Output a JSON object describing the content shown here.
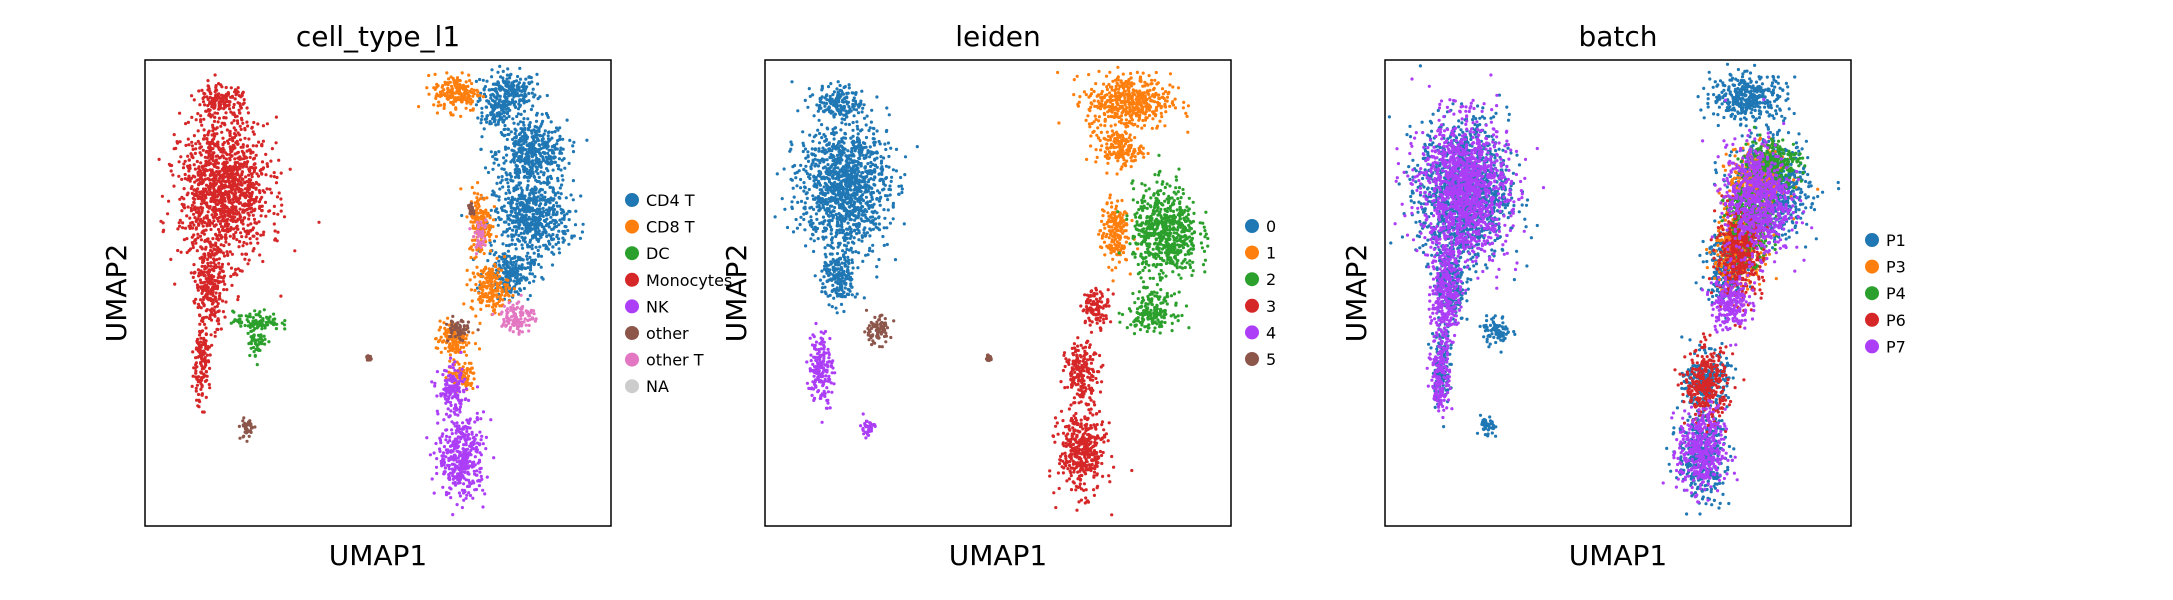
{
  "chart_data": [
    {
      "type": "scatter",
      "title": "cell_type_l1",
      "xlabel": "UMAP1",
      "ylabel": "UMAP2",
      "xlim": [
        0,
        10
      ],
      "ylim": [
        0,
        10
      ],
      "legend": "right",
      "series": [
        {
          "name": "CD4 T",
          "color": "#1f77b4",
          "blobs": [
            [
              7.8,
              9.3,
              0.6,
              0.45
            ],
            [
              8.3,
              8.0,
              0.75,
              0.7
            ],
            [
              8.3,
              6.6,
              0.8,
              0.8
            ],
            [
              7.8,
              5.4,
              0.5,
              0.5
            ],
            [
              7.5,
              8.8,
              0.3,
              0.3
            ]
          ]
        },
        {
          "name": "CD8 T",
          "color": "#ff7f0e",
          "blobs": [
            [
              6.7,
              9.3,
              0.5,
              0.4
            ],
            [
              7.2,
              6.5,
              0.25,
              0.7
            ],
            [
              7.4,
              5.1,
              0.4,
              0.5
            ],
            [
              6.6,
              4.0,
              0.35,
              0.4
            ],
            [
              6.8,
              3.2,
              0.3,
              0.3
            ]
          ]
        },
        {
          "name": "DC",
          "color": "#2ca02c",
          "blobs": [
            [
              2.4,
              4.4,
              0.5,
              0.2
            ],
            [
              2.4,
              4.0,
              0.2,
              0.35
            ]
          ]
        },
        {
          "name": "Monocytes",
          "color": "#d62728",
          "blobs": [
            [
              1.7,
              7.2,
              0.95,
              1.5
            ],
            [
              1.4,
              5.2,
              0.3,
              0.9
            ],
            [
              1.2,
              3.5,
              0.18,
              0.9
            ],
            [
              1.6,
              9.1,
              0.5,
              0.35
            ]
          ]
        },
        {
          "name": "NK",
          "color": "#ac3ef7",
          "blobs": [
            [
              6.8,
              1.5,
              0.5,
              0.9
            ],
            [
              6.6,
              2.9,
              0.3,
              0.5
            ]
          ]
        },
        {
          "name": "other",
          "color": "#8c564b",
          "blobs": [
            [
              2.2,
              2.1,
              0.15,
              0.25
            ],
            [
              6.7,
              4.2,
              0.25,
              0.25
            ],
            [
              7.0,
              6.8,
              0.05,
              0.1
            ],
            [
              4.8,
              3.6,
              0.05,
              0.05
            ]
          ]
        },
        {
          "name": "other T",
          "color": "#e377c2",
          "blobs": [
            [
              8.0,
              4.5,
              0.35,
              0.35
            ],
            [
              7.2,
              6.2,
              0.15,
              0.3
            ]
          ]
        },
        {
          "name": "NA",
          "color": "#cccccc",
          "blobs": []
        }
      ]
    },
    {
      "type": "scatter",
      "title": "leiden",
      "xlabel": "UMAP1",
      "ylabel": "UMAP2",
      "xlim": [
        0,
        10
      ],
      "ylim": [
        0,
        10
      ],
      "legend": "right",
      "series": [
        {
          "name": "0",
          "color": "#1f77b4",
          "blobs": [
            [
              1.7,
              7.3,
              0.95,
              1.4
            ],
            [
              1.6,
              9.1,
              0.5,
              0.35
            ],
            [
              1.6,
              5.3,
              0.35,
              0.6
            ]
          ]
        },
        {
          "name": "1",
          "color": "#ff7f0e",
          "blobs": [
            [
              7.8,
              9.1,
              0.9,
              0.6
            ],
            [
              7.6,
              8.1,
              0.5,
              0.35
            ],
            [
              7.5,
              6.3,
              0.3,
              0.7
            ]
          ]
        },
        {
          "name": "2",
          "color": "#2ca02c",
          "blobs": [
            [
              8.6,
              6.3,
              0.7,
              1.0
            ],
            [
              8.3,
              4.6,
              0.5,
              0.4
            ]
          ]
        },
        {
          "name": "3",
          "color": "#d62728",
          "blobs": [
            [
              6.8,
              1.6,
              0.5,
              0.9
            ],
            [
              6.8,
              3.3,
              0.35,
              0.6
            ],
            [
              7.1,
              4.7,
              0.3,
              0.4
            ]
          ]
        },
        {
          "name": "4",
          "color": "#ac3ef7",
          "blobs": [
            [
              1.2,
              3.4,
              0.25,
              0.8
            ],
            [
              2.2,
              2.1,
              0.15,
              0.2
            ]
          ]
        },
        {
          "name": "5",
          "color": "#8c564b",
          "blobs": [
            [
              2.4,
              4.2,
              0.3,
              0.3
            ],
            [
              4.8,
              3.6,
              0.05,
              0.05
            ]
          ]
        }
      ]
    },
    {
      "type": "scatter",
      "title": "batch",
      "xlabel": "UMAP1",
      "ylabel": "UMAP2",
      "xlim": [
        0,
        10
      ],
      "ylim": [
        0,
        10
      ],
      "legend": "right",
      "series": [
        {
          "name": "P1",
          "color": "#1f77b4",
          "blobs": [
            [
              7.8,
              9.2,
              0.8,
              0.5
            ],
            [
              8.3,
              7.2,
              0.8,
              1.0
            ],
            [
              7.3,
              5.6,
              0.4,
              0.8
            ],
            [
              6.9,
              3.1,
              0.45,
              0.6
            ],
            [
              6.8,
              1.5,
              0.5,
              0.9
            ],
            [
              1.7,
              7.2,
              0.95,
              1.5
            ],
            [
              1.4,
              5.2,
              0.3,
              0.9
            ],
            [
              1.2,
              3.5,
              0.18,
              0.9
            ],
            [
              2.4,
              4.2,
              0.3,
              0.3
            ],
            [
              2.2,
              2.1,
              0.15,
              0.25
            ]
          ]
        },
        {
          "name": "P3",
          "color": "#ff7f0e",
          "blobs": [
            [
              7.6,
              6.0,
              0.5,
              0.8
            ],
            [
              8.0,
              7.5,
              0.6,
              0.6
            ]
          ]
        },
        {
          "name": "P4",
          "color": "#2ca02c",
          "blobs": [
            [
              7.8,
              6.5,
              0.5,
              0.8
            ],
            [
              8.3,
              7.8,
              0.6,
              0.5
            ]
          ]
        },
        {
          "name": "P6",
          "color": "#d62728",
          "blobs": [
            [
              7.6,
              5.8,
              0.5,
              0.9
            ],
            [
              6.9,
              3.0,
              0.45,
              0.8
            ]
          ]
        },
        {
          "name": "P7",
          "color": "#ac3ef7",
          "blobs": [
            [
              1.7,
              7.2,
              0.95,
              1.5
            ],
            [
              1.3,
              5.0,
              0.3,
              1.0
            ],
            [
              1.2,
              3.3,
              0.2,
              0.9
            ],
            [
              6.8,
              1.6,
              0.5,
              0.9
            ],
            [
              8.0,
              7.0,
              0.7,
              1.2
            ],
            [
              7.4,
              4.8,
              0.4,
              0.6
            ]
          ]
        }
      ]
    }
  ]
}
